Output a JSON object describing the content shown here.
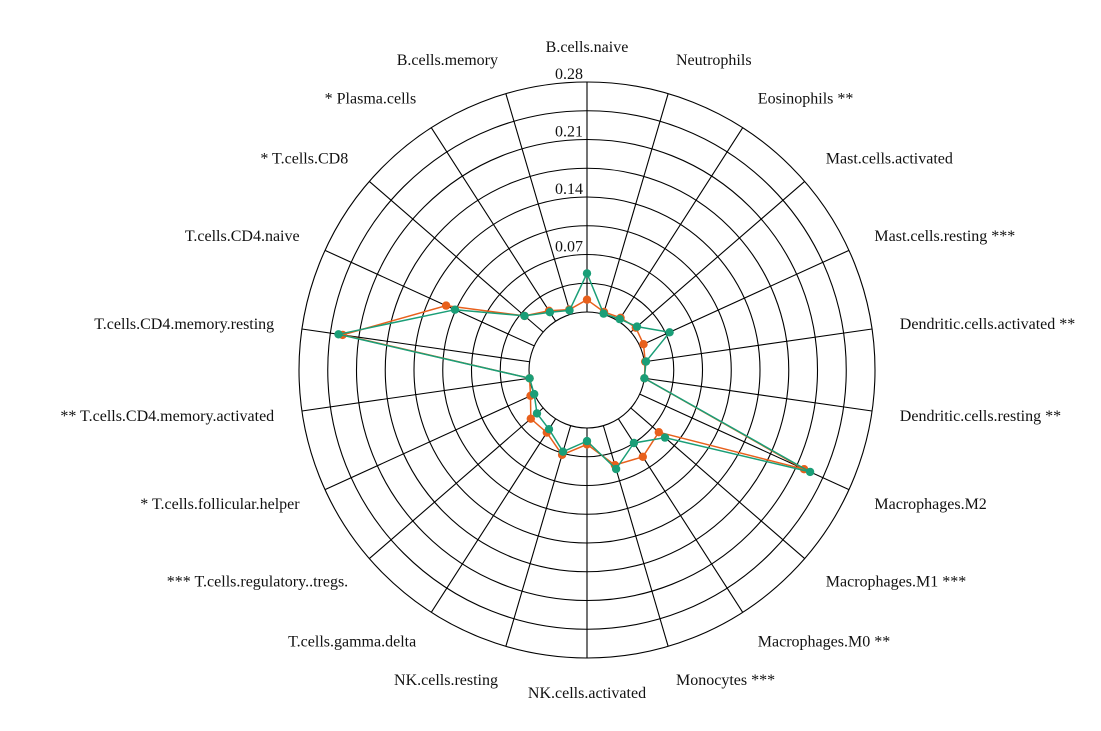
{
  "chart_data": {
    "type": "radar",
    "title": "",
    "rlim": [
      0,
      0.28
    ],
    "ticks": [
      "0.07",
      "0.14",
      "0.21",
      "0.28"
    ],
    "tick_values": [
      0.07,
      0.14,
      0.21,
      0.28
    ],
    "grid": true,
    "categories": [
      "B.cells.naive",
      "Neutrophils",
      "Eosinophils **",
      "Mast.cells.activated",
      "Mast.cells.resting ***",
      "Dendritic.cells.activated **",
      "Dendritic.cells.resting **",
      "Macrophages.M2",
      "Macrophages.M1 ***",
      "Macrophages.M0 **",
      "Monocytes ***",
      "NK.cells.activated",
      "NK.cells.resting",
      "T.cells.gamma.delta",
      "*** T.cells.regulatory..tregs.",
      "* T.cells.follicular.helper",
      "** T.cells.CD4.memory.activated",
      "T.cells.CD4.memory.resting",
      "T.cells.CD4.naive",
      "* T.cells.CD8",
      "* Plasma.cells",
      "B.cells.memory"
    ],
    "series": [
      {
        "color": "#e8601c",
        "values": [
          0.015,
          0.003,
          0.005,
          0.008,
          0.005,
          0.001,
          0.0,
          0.22,
          0.045,
          0.055,
          0.05,
          0.02,
          0.037,
          0.02,
          0.02,
          0.005,
          0.0,
          0.23,
          0.118,
          0.03,
          0.015,
          0.006
        ]
      },
      {
        "color": "#1a9e77",
        "values": [
          0.047,
          0.001,
          0.003,
          0.01,
          0.04,
          0.002,
          0.0,
          0.228,
          0.055,
          0.035,
          0.055,
          0.016,
          0.033,
          0.015,
          0.01,
          0.0,
          0.0,
          0.235,
          0.106,
          0.03,
          0.013,
          0.005
        ]
      }
    ]
  }
}
